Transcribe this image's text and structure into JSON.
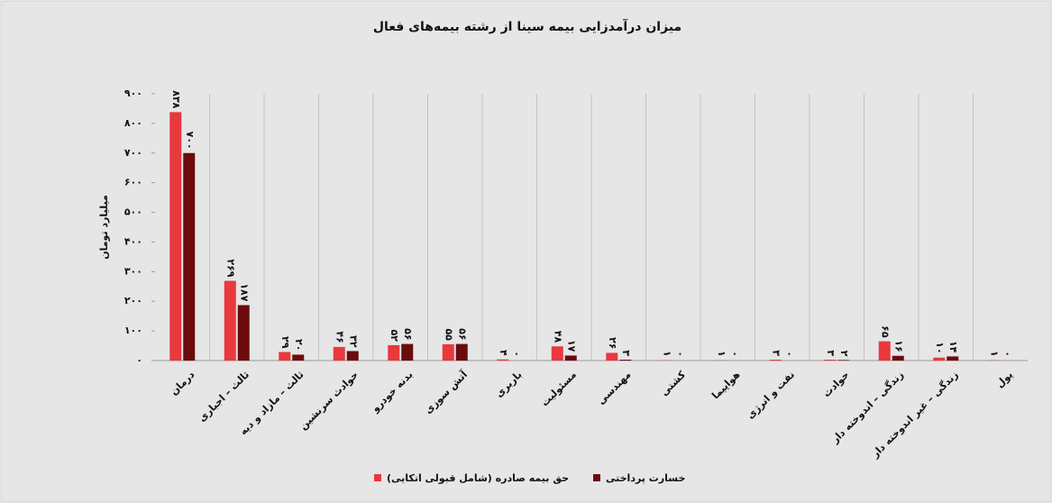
{
  "chart_data": {
    "type": "bar",
    "title": "میزان درآمدزایی بیمه سینا از رشته بیمه‌های فعال",
    "y_label": "میلیارد تومان",
    "categories": [
      "درمان",
      "ثالث – اجباری",
      "ثالث – مازاد و دیه",
      "حوادث سرنشین",
      "بدنه خودرو",
      "آتش سوزی",
      "باربری",
      "مسئولیت",
      "مهندسی",
      "کشتی",
      "هواپیما",
      "نفت و انرژی",
      "حوادث",
      "زندگی – اندوخته دار",
      "زندگی – غیر اندوخته دار",
      "پول"
    ],
    "series": [
      {
        "name": "حق بیمه صادره (شامل قبولی اتکایی)",
        "color": "#e8393d",
        "values": [
          838,
          269,
          29,
          46,
          52,
          55,
          4,
          48,
          26,
          1,
          1,
          3,
          3,
          65,
          10,
          1
        ],
        "value_labels": [
          "۸۳۸",
          "۲۶۹",
          "۲۹",
          "۴۶",
          "۵۲",
          "۵۵",
          "۴",
          "۴۸",
          "۲۶",
          "۱",
          "۱",
          "۳",
          "۳",
          "۶۵",
          "۱۰",
          "۱"
        ]
      },
      {
        "name": "خسارت پرداختی",
        "color": "#6b0b0b",
        "values": [
          700,
          187,
          20,
          32,
          56,
          56,
          0,
          17,
          3,
          0,
          0,
          0,
          2,
          16,
          14,
          0
        ],
        "value_labels": [
          "۷۰۰",
          "۱۸۷",
          "۲۰",
          "۳۲",
          "۵۶",
          "۵۶",
          "۰",
          "۱۷",
          "۳",
          "۰",
          "۰",
          "۰",
          "۲",
          "۱۶",
          "۱۴",
          "۰"
        ]
      }
    ],
    "ylim": [
      0,
      900
    ],
    "yticks": [
      {
        "value": 0,
        "label": "۰"
      },
      {
        "value": 100,
        "label": "۱۰۰"
      },
      {
        "value": 200,
        "label": "۲۰۰"
      },
      {
        "value": 300,
        "label": "۳۰۰"
      },
      {
        "value": 400,
        "label": "۴۰۰"
      },
      {
        "value": 500,
        "label": "۵۰۰"
      },
      {
        "value": 600,
        "label": "۶۰۰"
      },
      {
        "value": 700,
        "label": "۷۰۰"
      },
      {
        "value": 800,
        "label": "۸۰۰"
      },
      {
        "value": 900,
        "label": "۹۰۰"
      }
    ],
    "grid": true
  }
}
